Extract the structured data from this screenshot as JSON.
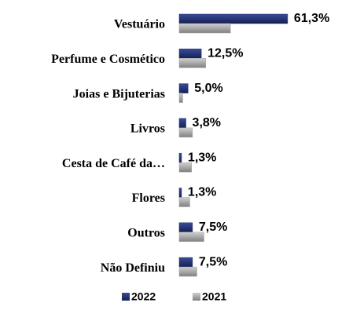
{
  "chart_data": {
    "type": "bar",
    "orientation": "horizontal",
    "categories": [
      "Vestuário",
      "Perfume e Cosmético",
      "Joias e Bijuterias",
      "Livros",
      "Cesta de Café da…",
      "Flores",
      "Outros",
      "Não Definiu"
    ],
    "series": [
      {
        "name": "2022",
        "color": "#1f2d6e",
        "values": [
          61.3,
          12.5,
          5.0,
          3.8,
          1.3,
          1.3,
          7.5,
          7.5
        ],
        "value_labels": [
          "61,3%",
          "12,5%",
          "5,0%",
          "3,8%",
          "1,3%",
          "1,3%",
          "7,5%",
          "7,5%"
        ]
      },
      {
        "name": "2021",
        "color": "#a6a6a6",
        "values": [
          29,
          15,
          2,
          7.5,
          7,
          6,
          14,
          10
        ]
      }
    ]
  }
}
